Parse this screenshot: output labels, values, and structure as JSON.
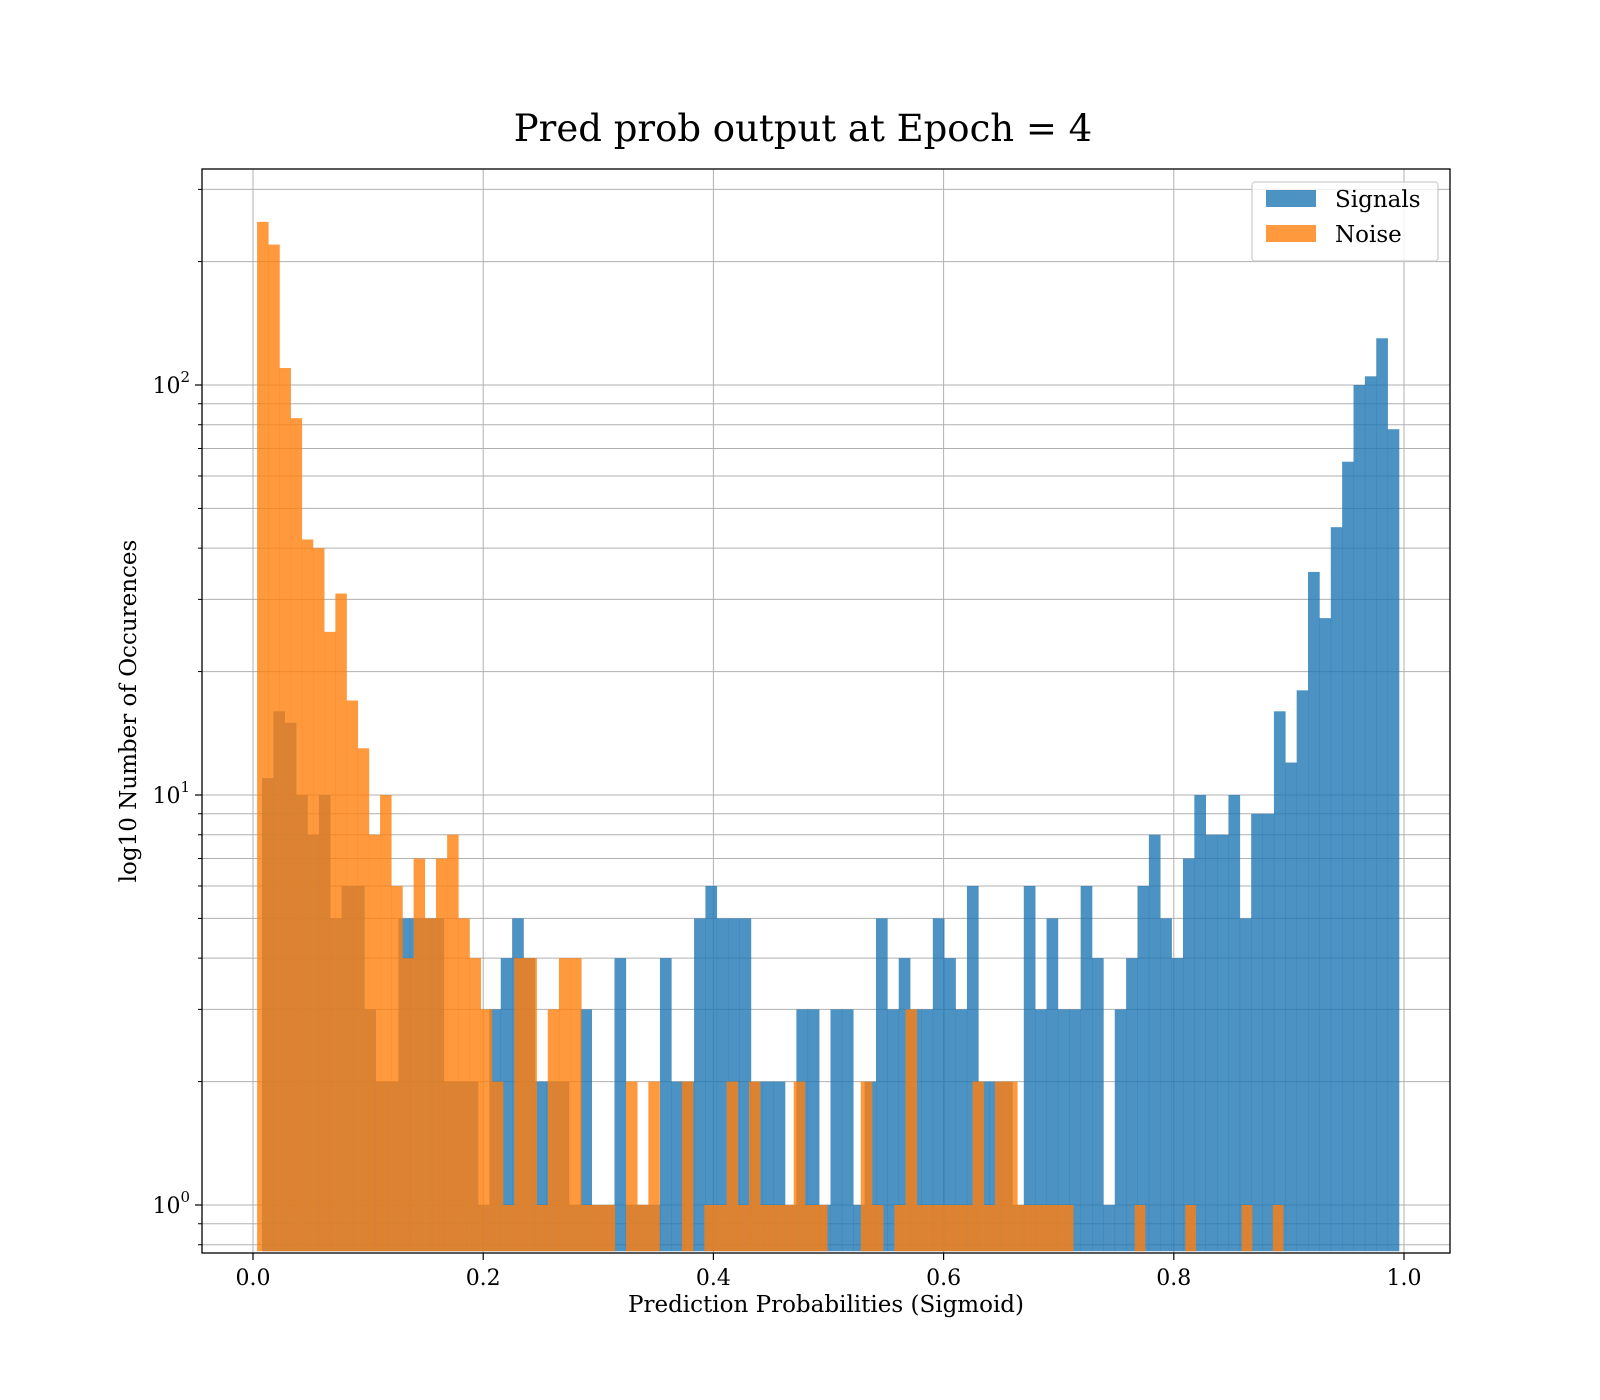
{
  "chart_data": {
    "type": "histogram",
    "title": "Pred prob output at Epoch = 4",
    "xlabel": "Prediction Probabilities (Sigmoid)",
    "ylabel": "log10 Number of Occurences",
    "yscale": "log",
    "xlim": [
      -0.044,
      1.04
    ],
    "ylim": [
      0.78,
      320
    ],
    "grid": true,
    "legend_position": "top-right",
    "x_ticks": [
      "0.0",
      "0.2",
      "0.4",
      "0.6",
      "0.8",
      "1.0"
    ],
    "x_tick_values": [
      0.0,
      0.2,
      0.4,
      0.6,
      0.8,
      1.0
    ],
    "y_ticks": [
      {
        "base": "10",
        "exp": "0",
        "value": 1
      },
      {
        "base": "10",
        "exp": "1",
        "value": 10
      },
      {
        "base": "10",
        "exp": "2",
        "value": 100
      }
    ],
    "series": [
      {
        "name": "Signals",
        "color": "#1f77b4",
        "bins": [
          [
            0.00782,
            0.0177,
            11
          ],
          [
            0.0177,
            0.02757,
            16
          ],
          [
            0.02757,
            0.03745,
            15
          ],
          [
            0.03745,
            0.04733,
            10
          ],
          [
            0.04733,
            0.05721,
            8
          ],
          [
            0.05721,
            0.06709,
            10
          ],
          [
            0.06709,
            0.07697,
            5
          ],
          [
            0.07697,
            0.08684,
            6
          ],
          [
            0.08684,
            0.09672,
            6
          ],
          [
            0.09672,
            0.1066,
            3
          ],
          [
            0.1066,
            0.11648,
            2
          ],
          [
            0.11648,
            0.12636,
            2
          ],
          [
            0.12636,
            0.13624,
            5
          ],
          [
            0.13624,
            0.14611,
            5
          ],
          [
            0.14611,
            0.15599,
            5
          ],
          [
            0.15599,
            0.16587,
            5
          ],
          [
            0.16587,
            0.17575,
            2
          ],
          [
            0.17575,
            0.18563,
            2
          ],
          [
            0.18563,
            0.19551,
            2
          ],
          [
            0.19551,
            0.20538,
            1
          ],
          [
            0.20538,
            0.21526,
            3
          ],
          [
            0.21526,
            0.22514,
            4
          ],
          [
            0.22514,
            0.23502,
            5
          ],
          [
            0.23502,
            0.2449,
            4
          ],
          [
            0.2449,
            0.25478,
            2
          ],
          [
            0.25478,
            0.26466,
            2
          ],
          [
            0.26466,
            0.27453,
            2
          ],
          [
            0.27453,
            0.28441,
            1
          ],
          [
            0.28441,
            0.29429,
            3
          ],
          [
            0.29429,
            0.30417,
            1
          ],
          [
            0.30417,
            0.31405,
            1
          ],
          [
            0.31405,
            0.32393,
            4
          ],
          [
            0.32393,
            0.3338,
            1
          ],
          [
            0.3338,
            0.34368,
            1
          ],
          [
            0.34368,
            0.35356,
            1
          ],
          [
            0.35356,
            0.36344,
            4
          ],
          [
            0.36344,
            0.37332,
            2
          ],
          [
            0.37332,
            0.3832,
            2
          ],
          [
            0.3832,
            0.39307,
            5
          ],
          [
            0.39307,
            0.40295,
            6
          ],
          [
            0.40295,
            0.41283,
            5
          ],
          [
            0.41283,
            0.42271,
            5
          ],
          [
            0.42271,
            0.43259,
            5
          ],
          [
            0.43259,
            0.44247,
            2
          ],
          [
            0.44247,
            0.45234,
            2
          ],
          [
            0.45234,
            0.46222,
            2
          ],
          [
            0.46222,
            0.4721,
            1
          ],
          [
            0.4721,
            0.48198,
            3
          ],
          [
            0.48198,
            0.49186,
            3
          ],
          [
            0.49186,
            0.50174,
            1
          ],
          [
            0.50174,
            0.51162,
            3
          ],
          [
            0.51162,
            0.52149,
            3
          ],
          [
            0.52149,
            0.53137,
            1
          ],
          [
            0.53137,
            0.54125,
            2
          ],
          [
            0.54125,
            0.55113,
            5
          ],
          [
            0.55113,
            0.56101,
            3
          ],
          [
            0.56101,
            0.57089,
            4
          ],
          [
            0.57089,
            0.58076,
            3
          ],
          [
            0.58076,
            0.59064,
            3
          ],
          [
            0.59064,
            0.60052,
            5
          ],
          [
            0.60052,
            0.6104,
            4
          ],
          [
            0.6104,
            0.62028,
            3
          ],
          [
            0.62028,
            0.63016,
            6
          ],
          [
            0.63016,
            0.64003,
            2
          ],
          [
            0.64003,
            0.64991,
            2
          ],
          [
            0.64991,
            0.65979,
            2
          ],
          [
            0.65979,
            0.66967,
            1
          ],
          [
            0.66967,
            0.67955,
            6
          ],
          [
            0.67955,
            0.68943,
            3
          ],
          [
            0.68943,
            0.6993,
            5
          ],
          [
            0.6993,
            0.70918,
            3
          ],
          [
            0.70918,
            0.71906,
            3
          ],
          [
            0.71906,
            0.72894,
            6
          ],
          [
            0.72894,
            0.73882,
            4
          ],
          [
            0.73882,
            0.7487,
            1
          ],
          [
            0.7487,
            0.75858,
            3
          ],
          [
            0.75858,
            0.76845,
            4
          ],
          [
            0.76845,
            0.77833,
            6
          ],
          [
            0.77833,
            0.78821,
            8
          ],
          [
            0.78821,
            0.79809,
            5
          ],
          [
            0.79809,
            0.80797,
            4
          ],
          [
            0.80797,
            0.81785,
            7
          ],
          [
            0.81785,
            0.82772,
            10
          ],
          [
            0.82772,
            0.8376,
            8
          ],
          [
            0.8376,
            0.84748,
            8
          ],
          [
            0.84748,
            0.85736,
            10
          ],
          [
            0.85736,
            0.86724,
            5
          ],
          [
            0.86724,
            0.87712,
            9
          ],
          [
            0.87712,
            0.88699,
            9
          ],
          [
            0.88699,
            0.89687,
            16
          ],
          [
            0.89687,
            0.90675,
            12
          ],
          [
            0.90675,
            0.91663,
            18
          ],
          [
            0.91663,
            0.92651,
            35
          ],
          [
            0.92651,
            0.93639,
            27
          ],
          [
            0.93639,
            0.94626,
            45
          ],
          [
            0.94626,
            0.95614,
            65
          ],
          [
            0.95614,
            0.96602,
            100
          ],
          [
            0.96602,
            0.9759,
            105
          ],
          [
            0.9759,
            0.98578,
            130
          ],
          [
            0.98578,
            0.99566,
            78
          ]
        ]
      },
      {
        "name": "Noise",
        "color": "#ff7f0e",
        "bins": [
          [
            0.00356,
            0.01328,
            250
          ],
          [
            0.01328,
            0.02299,
            220
          ],
          [
            0.02299,
            0.0327,
            110
          ],
          [
            0.0327,
            0.04241,
            83
          ],
          [
            0.04241,
            0.05213,
            42
          ],
          [
            0.05213,
            0.06184,
            40
          ],
          [
            0.06184,
            0.07155,
            25
          ],
          [
            0.07155,
            0.08127,
            31
          ],
          [
            0.08127,
            0.09098,
            17
          ],
          [
            0.09098,
            0.10069,
            13
          ],
          [
            0.10069,
            0.1104,
            8
          ],
          [
            0.1104,
            0.12012,
            10
          ],
          [
            0.12012,
            0.12983,
            6
          ],
          [
            0.12983,
            0.13954,
            4
          ],
          [
            0.13954,
            0.14925,
            7
          ],
          [
            0.14925,
            0.15897,
            5
          ],
          [
            0.15897,
            0.16868,
            7
          ],
          [
            0.16868,
            0.17839,
            8
          ],
          [
            0.17839,
            0.1881,
            5
          ],
          [
            0.1881,
            0.19782,
            4
          ],
          [
            0.19782,
            0.20753,
            3
          ],
          [
            0.20753,
            0.21724,
            2
          ],
          [
            0.21724,
            0.22695,
            1
          ],
          [
            0.22695,
            0.23667,
            4
          ],
          [
            0.23667,
            0.24638,
            4
          ],
          [
            0.24638,
            0.25609,
            1
          ],
          [
            0.25609,
            0.2658,
            3
          ],
          [
            0.2658,
            0.27552,
            4
          ],
          [
            0.27552,
            0.28523,
            4
          ],
          [
            0.28523,
            0.29494,
            1
          ],
          [
            0.29494,
            0.30465,
            1
          ],
          [
            0.30465,
            0.31437,
            1
          ],
          [
            0.31437,
            0.32408,
            0
          ],
          [
            0.32408,
            0.33379,
            2
          ],
          [
            0.33379,
            0.3435,
            1
          ],
          [
            0.3435,
            0.35322,
            2
          ],
          [
            0.35322,
            0.36293,
            0
          ],
          [
            0.36293,
            0.37264,
            0
          ],
          [
            0.37264,
            0.38235,
            2
          ],
          [
            0.38235,
            0.39207,
            0
          ],
          [
            0.39207,
            0.40178,
            1
          ],
          [
            0.40178,
            0.41149,
            1
          ],
          [
            0.41149,
            0.4212,
            2
          ],
          [
            0.4212,
            0.43092,
            1
          ],
          [
            0.43092,
            0.44063,
            2
          ],
          [
            0.44063,
            0.45034,
            1
          ],
          [
            0.45034,
            0.46005,
            1
          ],
          [
            0.46005,
            0.46977,
            1
          ],
          [
            0.46977,
            0.47948,
            2
          ],
          [
            0.47948,
            0.48919,
            1
          ],
          [
            0.48919,
            0.4989,
            1
          ],
          [
            0.4989,
            0.50862,
            0
          ],
          [
            0.50862,
            0.51833,
            0
          ],
          [
            0.51833,
            0.52804,
            0
          ],
          [
            0.52804,
            0.53775,
            2
          ],
          [
            0.53775,
            0.54747,
            1
          ],
          [
            0.54747,
            0.55718,
            0
          ],
          [
            0.55718,
            0.56689,
            1
          ],
          [
            0.56689,
            0.5766,
            3
          ],
          [
            0.5766,
            0.58632,
            1
          ],
          [
            0.58632,
            0.59603,
            1
          ],
          [
            0.59603,
            0.60574,
            1
          ],
          [
            0.60574,
            0.61545,
            1
          ],
          [
            0.61545,
            0.62517,
            1
          ],
          [
            0.62517,
            0.63488,
            2
          ],
          [
            0.63488,
            0.64459,
            1
          ],
          [
            0.64459,
            0.6543,
            2
          ],
          [
            0.6543,
            0.66402,
            2
          ],
          [
            0.66402,
            0.67373,
            1
          ],
          [
            0.67373,
            0.68344,
            1
          ],
          [
            0.68344,
            0.69315,
            1
          ],
          [
            0.69315,
            0.70287,
            1
          ],
          [
            0.70287,
            0.71258,
            1
          ],
          [
            0.71258,
            0.766,
            0
          ],
          [
            0.766,
            0.775,
            1
          ],
          [
            0.775,
            0.81,
            0
          ],
          [
            0.81,
            0.819,
            1
          ],
          [
            0.819,
            0.859,
            0
          ],
          [
            0.859,
            0.868,
            1
          ],
          [
            0.868,
            0.886,
            0
          ],
          [
            0.886,
            0.895,
            1
          ]
        ]
      }
    ]
  }
}
